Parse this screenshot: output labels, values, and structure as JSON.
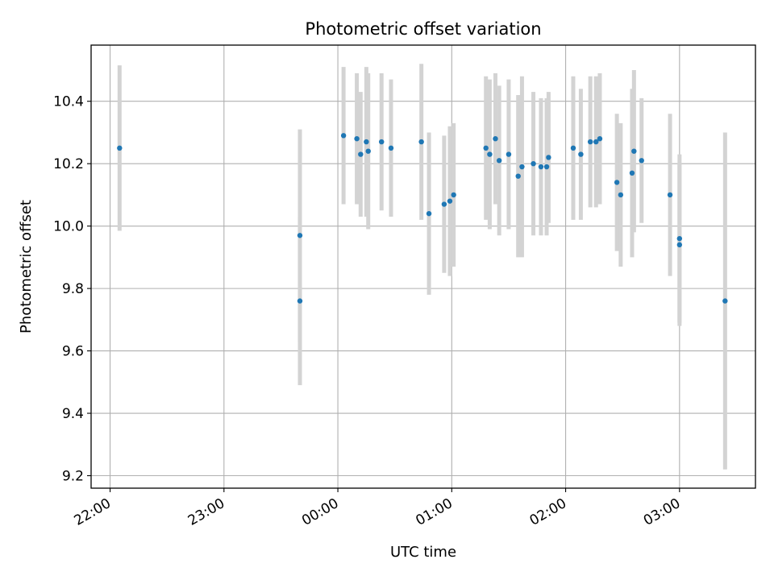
{
  "chart_data": {
    "type": "scatter",
    "title": "Photometric offset variation",
    "xlabel": "UTC time",
    "ylabel": "Photometric offset",
    "x_axis_kind": "time",
    "x_ticks": [
      "22:00",
      "23:00",
      "00:00",
      "01:00",
      "02:00",
      "03:00"
    ],
    "x_range": [
      "21:50",
      "03:40"
    ],
    "ylim": [
      9.16,
      10.58
    ],
    "y_ticks": [
      9.2,
      9.4,
      9.6,
      9.8,
      10.0,
      10.2,
      10.4
    ],
    "y_tick_labels": [
      "9.2",
      "9.4",
      "9.6",
      "9.8",
      "10.0",
      "10.2",
      "10.4"
    ],
    "grid": true,
    "colors": {
      "points": "#1f77b4",
      "errorbars": "#d3d3d3",
      "grid": "#b0b0b0"
    },
    "series": [
      {
        "points": [
          {
            "x": "22:05",
            "y": 10.25,
            "err": 0.265
          },
          {
            "x": "23:40",
            "y": 9.76,
            "err": 0.27
          },
          {
            "x": "23:40",
            "y": 9.97,
            "err": 0.34
          },
          {
            "x": "00:03",
            "y": 10.29,
            "err": 0.22
          },
          {
            "x": "00:10",
            "y": 10.28,
            "err": 0.21
          },
          {
            "x": "00:12",
            "y": 10.23,
            "err": 0.2
          },
          {
            "x": "00:15",
            "y": 10.27,
            "err": 0.24
          },
          {
            "x": "00:16",
            "y": 10.24,
            "err": 0.25
          },
          {
            "x": "00:23",
            "y": 10.27,
            "err": 0.22
          },
          {
            "x": "00:28",
            "y": 10.25,
            "err": 0.22
          },
          {
            "x": "00:44",
            "y": 10.27,
            "err": 0.25
          },
          {
            "x": "00:48",
            "y": 10.04,
            "err": 0.26
          },
          {
            "x": "00:56",
            "y": 10.07,
            "err": 0.22
          },
          {
            "x": "00:59",
            "y": 10.08,
            "err": 0.24
          },
          {
            "x": "01:01",
            "y": 10.1,
            "err": 0.23
          },
          {
            "x": "01:18",
            "y": 10.25,
            "err": 0.23
          },
          {
            "x": "01:20",
            "y": 10.23,
            "err": 0.24
          },
          {
            "x": "01:23",
            "y": 10.28,
            "err": 0.21
          },
          {
            "x": "01:25",
            "y": 10.21,
            "err": 0.24
          },
          {
            "x": "01:30",
            "y": 10.23,
            "err": 0.24
          },
          {
            "x": "01:35",
            "y": 10.16,
            "err": 0.26
          },
          {
            "x": "01:37",
            "y": 10.19,
            "err": 0.29
          },
          {
            "x": "01:43",
            "y": 10.2,
            "err": 0.23
          },
          {
            "x": "01:47",
            "y": 10.19,
            "err": 0.22
          },
          {
            "x": "01:50",
            "y": 10.19,
            "err": 0.22
          },
          {
            "x": "01:51",
            "y": 10.22,
            "err": 0.21
          },
          {
            "x": "02:04",
            "y": 10.25,
            "err": 0.23
          },
          {
            "x": "02:08",
            "y": 10.23,
            "err": 0.21
          },
          {
            "x": "02:13",
            "y": 10.27,
            "err": 0.21
          },
          {
            "x": "02:16",
            "y": 10.27,
            "err": 0.21
          },
          {
            "x": "02:18",
            "y": 10.28,
            "err": 0.21
          },
          {
            "x": "02:27",
            "y": 10.14,
            "err": 0.22
          },
          {
            "x": "02:29",
            "y": 10.1,
            "err": 0.23
          },
          {
            "x": "02:35",
            "y": 10.17,
            "err": 0.27
          },
          {
            "x": "02:36",
            "y": 10.24,
            "err": 0.26
          },
          {
            "x": "02:40",
            "y": 10.21,
            "err": 0.2
          },
          {
            "x": "02:55",
            "y": 10.1,
            "err": 0.26
          },
          {
            "x": "03:00",
            "y": 9.96,
            "err": 0.27
          },
          {
            "x": "03:00",
            "y": 9.94,
            "err": 0.26
          },
          {
            "x": "03:24",
            "y": 9.76,
            "err": 0.54
          }
        ]
      }
    ]
  }
}
